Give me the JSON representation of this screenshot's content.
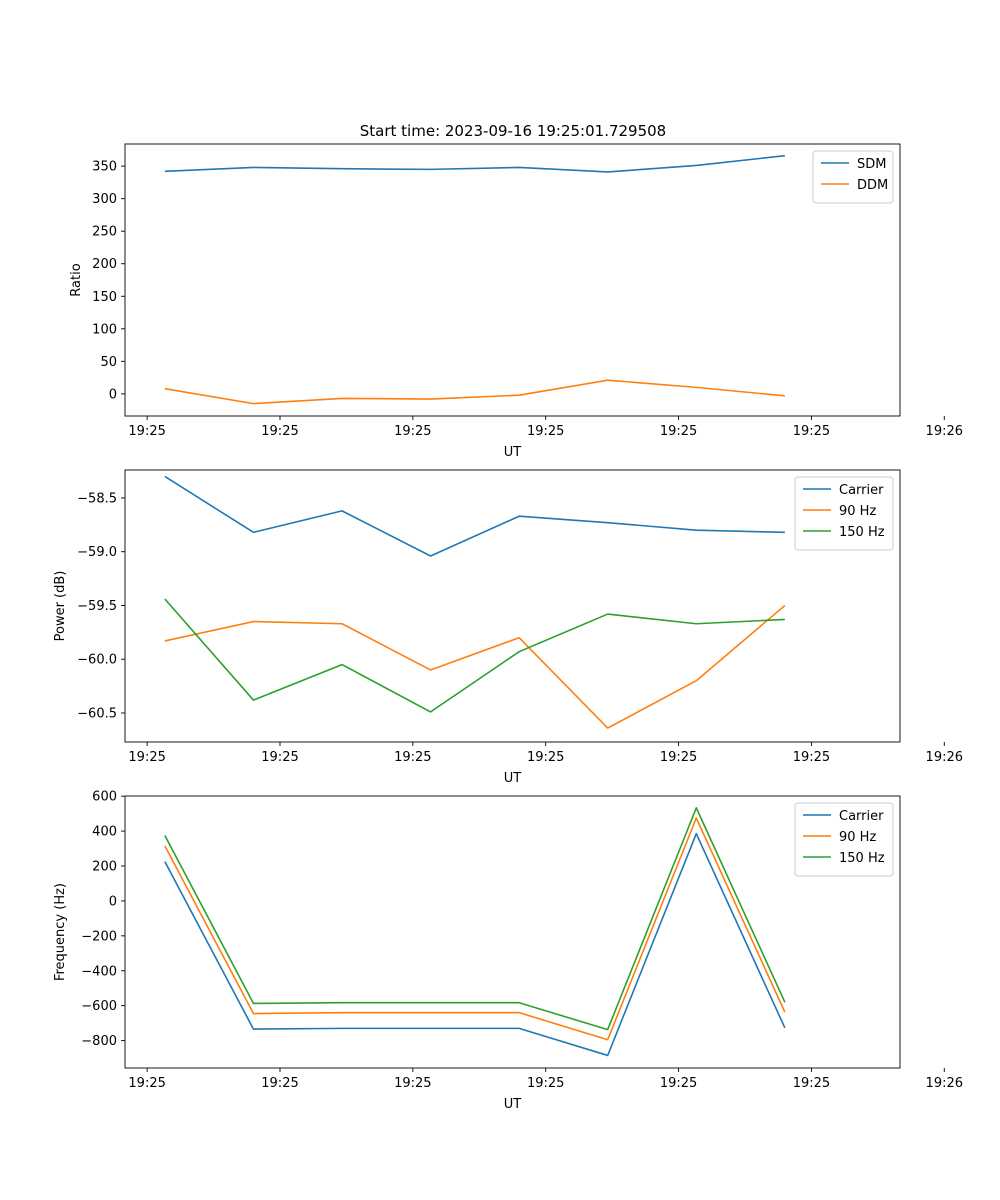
{
  "figure_title": "Start time: 2023-09-16 19:25:01.729508",
  "colors": {
    "blue": "#1f77b4",
    "orange": "#ff7f0e",
    "green": "#2ca02c"
  },
  "chart_data": [
    {
      "type": "line",
      "xlabel": "UT",
      "ylabel": "Ratio",
      "x": [
        1,
        2,
        3,
        4,
        5,
        6,
        7,
        8
      ],
      "xlim": [
        0.55,
        9.3
      ],
      "x_ticks": [
        0.8,
        2.3,
        3.8,
        5.3,
        6.8,
        8.3,
        9.8
      ],
      "x_tick_labels": [
        "19:25",
        "19:25",
        "19:25",
        "19:25",
        "19:25",
        "19:25",
        "19:26"
      ],
      "ylim": [
        -34,
        384
      ],
      "y_ticks": [
        0,
        50,
        100,
        150,
        200,
        250,
        300,
        350
      ],
      "y_tick_labels": [
        "0",
        "50",
        "100",
        "150",
        "200",
        "250",
        "300",
        "350"
      ],
      "legend_position": "top-right",
      "series": [
        {
          "name": "SDM",
          "color": "blue",
          "values": [
            342,
            348,
            346,
            345,
            348,
            341,
            351,
            366
          ]
        },
        {
          "name": "DDM",
          "color": "orange",
          "values": [
            8,
            -15,
            -7,
            -8,
            -2,
            21,
            10,
            -3
          ]
        }
      ]
    },
    {
      "type": "line",
      "xlabel": "UT",
      "ylabel": "Power (dB)",
      "x": [
        1,
        2,
        3,
        4,
        5,
        6,
        7,
        8
      ],
      "xlim": [
        0.55,
        9.3
      ],
      "x_ticks": [
        0.8,
        2.3,
        3.8,
        5.3,
        6.8,
        8.3,
        9.8
      ],
      "x_tick_labels": [
        "19:25",
        "19:25",
        "19:25",
        "19:25",
        "19:25",
        "19:25",
        "19:26"
      ],
      "ylim": [
        -60.77,
        -58.24
      ],
      "y_ticks": [
        -58.5,
        -59.0,
        -59.5,
        -60.0,
        -60.5
      ],
      "y_tick_labels": [
        "−58.5",
        "−59.0",
        "−59.5",
        "−60.0",
        "−60.5"
      ],
      "legend_position": "top-right",
      "series": [
        {
          "name": "Carrier",
          "color": "blue",
          "values": [
            -58.3,
            -58.82,
            -58.62,
            -59.04,
            -58.67,
            -58.73,
            -58.8,
            -58.82
          ]
        },
        {
          "name": "90 Hz",
          "color": "orange",
          "values": [
            -59.83,
            -59.65,
            -59.67,
            -60.1,
            -59.8,
            -60.64,
            -60.2,
            -59.5
          ]
        },
        {
          "name": "150 Hz",
          "color": "green",
          "values": [
            -59.44,
            -60.38,
            -60.05,
            -60.49,
            -59.93,
            -59.58,
            -59.67,
            -59.63
          ]
        }
      ]
    },
    {
      "type": "line",
      "xlabel": "UT",
      "ylabel": "Frequency (Hz)",
      "x": [
        1,
        2,
        3,
        4,
        5,
        6,
        7,
        8
      ],
      "xlim": [
        0.55,
        9.3
      ],
      "x_ticks": [
        0.8,
        2.3,
        3.8,
        5.3,
        6.8,
        8.3,
        9.8
      ],
      "x_tick_labels": [
        "19:25",
        "19:25",
        "19:25",
        "19:25",
        "19:25",
        "19:25",
        "19:26"
      ],
      "ylim": [
        -957,
        601
      ],
      "y_ticks": [
        600,
        400,
        200,
        0,
        -200,
        -400,
        -600,
        -800
      ],
      "y_tick_labels": [
        "600",
        "400",
        "200",
        "0",
        "−200",
        "−400",
        "−600",
        "−800"
      ],
      "legend_position": "top-right",
      "series": [
        {
          "name": "Carrier",
          "color": "blue",
          "values": [
            225,
            -734,
            -730,
            -730,
            -730,
            -885,
            385,
            -727
          ]
        },
        {
          "name": "90 Hz",
          "color": "orange",
          "values": [
            315,
            -645,
            -640,
            -640,
            -640,
            -795,
            475,
            -637
          ]
        },
        {
          "name": "150 Hz",
          "color": "green",
          "values": [
            375,
            -587,
            -583,
            -583,
            -583,
            -737,
            533,
            -580
          ]
        }
      ]
    }
  ]
}
